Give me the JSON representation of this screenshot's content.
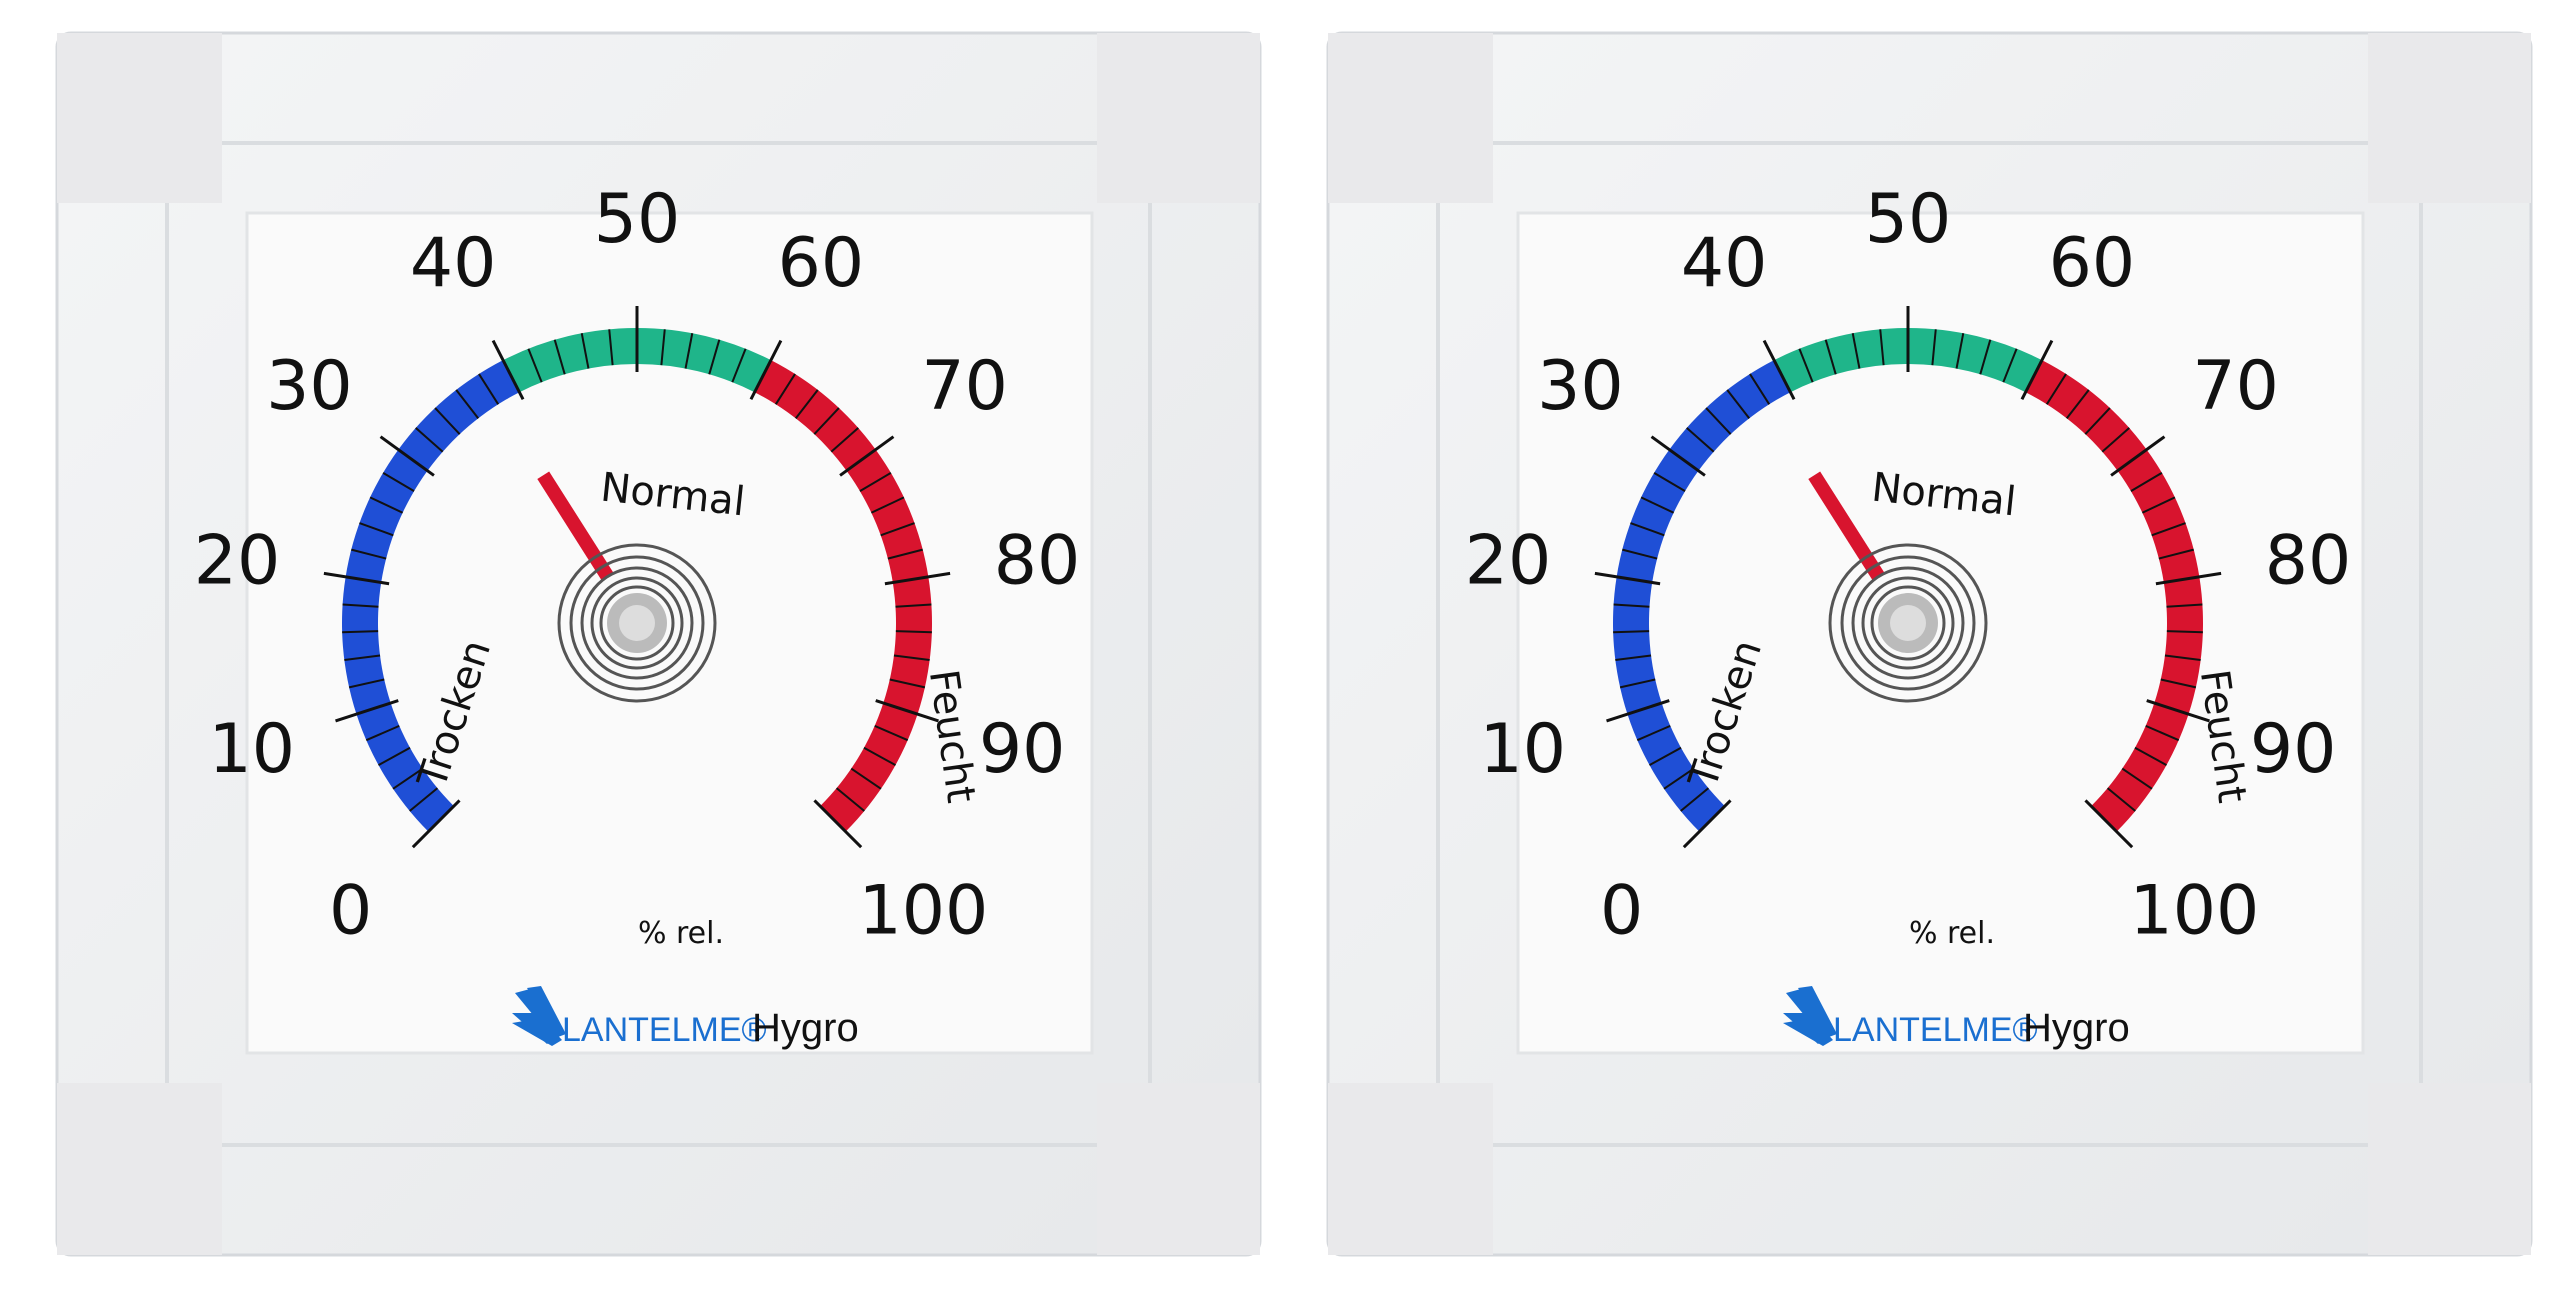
{
  "product": {
    "brand": "LANTELME®",
    "model": "Hygro",
    "unit_label": "% rel.",
    "zone_labels": {
      "dry": "Trocken",
      "normal": "Normal",
      "wet": "Feucht"
    }
  },
  "scale": {
    "min": 0,
    "max": 100,
    "major_labels": [
      "0",
      "10",
      "20",
      "30",
      "40",
      "50",
      "60",
      "70",
      "80",
      "90",
      "100"
    ],
    "minor_step": 2,
    "zones": [
      {
        "name": "dry",
        "from": 0,
        "to": 40,
        "color": "#1f4fd6"
      },
      {
        "name": "normal",
        "from": 40,
        "to": 60,
        "color": "#1fb58a"
      },
      {
        "name": "wet",
        "from": 60,
        "to": 100,
        "color": "#d8142e"
      }
    ]
  },
  "hygrometers": [
    {
      "reading_percent": 38,
      "needle_color": "#d8142e"
    },
    {
      "reading_percent": 38,
      "needle_color": "#d8142e"
    }
  ],
  "colors": {
    "logo_blue": "#1a6fd0",
    "frame": "#eef0f2",
    "corner_pad": "#e8e8ea"
  }
}
